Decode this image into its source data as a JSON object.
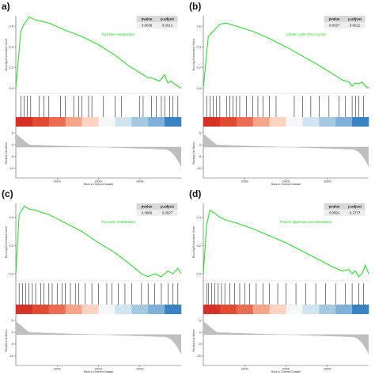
{
  "chart_data": [
    {
      "panel": "a)",
      "type": "line",
      "pathway": "Tyrosine metabolism",
      "pvalue": "0.0039",
      "p_adjust": "0.0612",
      "ylabel": "Running Enrichment Score",
      "metric_ylabel": "Ranked List Metric",
      "xlabel": "Rank in Ordered Dataset",
      "es_ticks": [
        "0.6",
        "0.4",
        "0.2",
        "0.0"
      ],
      "metric_ticks": [
        "5",
        "0",
        "-5",
        "-10"
      ],
      "x_ticks": [
        "10000",
        "20000",
        "30000"
      ],
      "x": [
        0,
        0.03,
        0.05,
        0.08,
        0.12,
        0.2,
        0.3,
        0.4,
        0.5,
        0.6,
        0.68,
        0.75,
        0.8,
        0.82,
        0.85,
        0.87,
        0.9,
        0.92,
        0.94,
        0.96,
        0.98,
        1.0
      ],
      "es": [
        0.0,
        0.55,
        0.62,
        0.69,
        0.66,
        0.63,
        0.56,
        0.5,
        0.42,
        0.32,
        0.22,
        0.15,
        0.1,
        0.1,
        0.08,
        0.07,
        0.13,
        0.05,
        0.07,
        0.04,
        0.02,
        0.0
      ],
      "hits": [
        0.03,
        0.05,
        0.07,
        0.09,
        0.14,
        0.17,
        0.2,
        0.27,
        0.3,
        0.35,
        0.38,
        0.4,
        0.44,
        0.46,
        0.53,
        0.6,
        0.64,
        0.75,
        0.77,
        0.82,
        0.85,
        0.88,
        0.9,
        0.93,
        0.95,
        0.98
      ],
      "heat_colors": [
        "#d73027",
        "#e34a33",
        "#ec6b53",
        "#f4a58a",
        "#fcd3c1",
        "#f7f7f7",
        "#d1e5f0",
        "#a6c9e2",
        "#7fb1d8",
        "#3a83c2"
      ]
    },
    {
      "panel": "(b)",
      "type": "line",
      "pathway": "Citrate cycle (TCA cycle)",
      "pvalue": "0.0027",
      "p_adjust": "0.0612",
      "ylabel": "Running Enrichment Score",
      "metric_ylabel": "Ranked List Metric",
      "xlabel": "Rank in Ordered Dataset",
      "es_ticks": [
        "0.6",
        "0.4",
        "0.2",
        "0.0"
      ],
      "metric_ticks": [
        "5",
        "0",
        "-5",
        "-10"
      ],
      "x_ticks": [
        "10000",
        "20000",
        "30000"
      ],
      "x": [
        0,
        0.03,
        0.06,
        0.1,
        0.14,
        0.2,
        0.3,
        0.4,
        0.5,
        0.6,
        0.7,
        0.78,
        0.84,
        0.88,
        0.9,
        0.92,
        0.94,
        0.96,
        0.98,
        1.0
      ],
      "es": [
        0.0,
        0.5,
        0.55,
        0.62,
        0.63,
        0.6,
        0.55,
        0.48,
        0.4,
        0.31,
        0.22,
        0.14,
        0.08,
        0.06,
        0.02,
        0.05,
        0.04,
        0.06,
        0.02,
        0.0
      ],
      "hits": [
        0.02,
        0.04,
        0.06,
        0.08,
        0.1,
        0.14,
        0.16,
        0.18,
        0.2,
        0.22,
        0.26,
        0.3,
        0.33,
        0.36,
        0.4,
        0.44,
        0.55,
        0.6,
        0.65,
        0.7,
        0.76,
        0.82,
        0.86,
        0.9,
        0.92,
        0.94,
        0.97
      ],
      "heat_colors": [
        "#d73027",
        "#e34a33",
        "#ec6b53",
        "#f4a58a",
        "#fcd3c1",
        "#f7f7f7",
        "#d1e5f0",
        "#a6c9e2",
        "#7fb1d8",
        "#3a83c2"
      ]
    },
    {
      "panel": "(c)",
      "type": "line",
      "pathway": "Pyruvate metabolism",
      "pvalue": "0.3869",
      "p_adjust": "0.2927",
      "ylabel": "Running Enrichment Score",
      "metric_ylabel": "Ranked List Metric",
      "xlabel": "Rank in Ordered Dataset",
      "es_ticks": [
        "0.4",
        "0.2",
        "0.0"
      ],
      "metric_ticks": [
        "5",
        "0",
        "-5",
        "-10"
      ],
      "x_ticks": [
        "10000",
        "20000",
        "30000"
      ],
      "x": [
        0,
        0.02,
        0.05,
        0.08,
        0.12,
        0.2,
        0.3,
        0.4,
        0.5,
        0.6,
        0.7,
        0.76,
        0.8,
        0.84,
        0.88,
        0.92,
        0.95,
        0.98,
        1.0
      ],
      "es": [
        0.0,
        0.42,
        0.48,
        0.46,
        0.45,
        0.42,
        0.36,
        0.3,
        0.22,
        0.15,
        0.06,
        0.0,
        -0.02,
        0.0,
        -0.02,
        0.02,
        0.0,
        0.04,
        0.0
      ],
      "hits": [
        0.02,
        0.04,
        0.06,
        0.08,
        0.1,
        0.12,
        0.15,
        0.17,
        0.2,
        0.22,
        0.25,
        0.28,
        0.3,
        0.33,
        0.36,
        0.38,
        0.42,
        0.46,
        0.5,
        0.55,
        0.58,
        0.62,
        0.66,
        0.7,
        0.76,
        0.8,
        0.84,
        0.88,
        0.92,
        0.95,
        0.98
      ],
      "heat_colors": [
        "#d73027",
        "#e34a33",
        "#ec6b53",
        "#f4a58a",
        "#fcd3c1",
        "#f7f7f7",
        "#d1e5f0",
        "#a6c9e2",
        "#7fb1d8",
        "#3a83c2"
      ]
    },
    {
      "panel": "(d)",
      "type": "line",
      "pathway": "Protein digestion and absorption",
      "pvalue": "0.0591",
      "p_adjust": "0.2777",
      "ylabel": "Running Enrichment Score",
      "metric_ylabel": "Ranked List Metric",
      "xlabel": "Rank in Ordered Dataset",
      "es_ticks": [
        "0.4",
        "0.2",
        "0.0"
      ],
      "metric_ticks": [
        "5",
        "0",
        "-5",
        "-10"
      ],
      "x_ticks": [
        "10000",
        "20000",
        "30000"
      ],
      "x": [
        0,
        0.02,
        0.04,
        0.07,
        0.1,
        0.14,
        0.2,
        0.3,
        0.4,
        0.5,
        0.6,
        0.7,
        0.78,
        0.84,
        0.88,
        0.9,
        0.92,
        0.94,
        0.96,
        0.98,
        1.0
      ],
      "es": [
        0.0,
        0.35,
        0.45,
        0.43,
        0.4,
        0.38,
        0.36,
        0.32,
        0.27,
        0.22,
        0.16,
        0.1,
        0.05,
        0.02,
        0.03,
        0.0,
        0.02,
        -0.02,
        0.0,
        0.06,
        0.0
      ],
      "hits": [
        0.02,
        0.03,
        0.05,
        0.07,
        0.09,
        0.11,
        0.13,
        0.16,
        0.19,
        0.22,
        0.25,
        0.28,
        0.32,
        0.36,
        0.4,
        0.45,
        0.5,
        0.56,
        0.62,
        0.68,
        0.74,
        0.8,
        0.86,
        0.9,
        0.94,
        0.97
      ],
      "heat_colors": [
        "#d73027",
        "#e34a33",
        "#ec6b53",
        "#f4a58a",
        "#fcd3c1",
        "#f7f7f7",
        "#d1e5f0",
        "#a6c9e2",
        "#7fb1d8",
        "#3a83c2"
      ]
    }
  ],
  "colors": {
    "es_line": "#2edb2e",
    "metric_fill": "#bfbfbf",
    "axis": "#555555",
    "table_header": "#d9d9d9",
    "table_body": "#eeeeee"
  }
}
